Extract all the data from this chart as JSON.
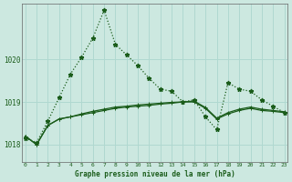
{
  "title": "Graphe pression niveau de la mer (hPa)",
  "background_color": "#cce8e0",
  "grid_color": "#b0d8d0",
  "line_color": "#1a5c1a",
  "xlim": [
    -0.3,
    23.3
  ],
  "ylim": [
    1017.6,
    1021.3
  ],
  "yticks": [
    1018,
    1019,
    1020
  ],
  "xticks": [
    0,
    1,
    2,
    3,
    4,
    5,
    6,
    7,
    8,
    9,
    10,
    11,
    12,
    13,
    14,
    15,
    16,
    17,
    18,
    19,
    20,
    21,
    22,
    23
  ],
  "series1_x": [
    0,
    1,
    2,
    3,
    4,
    5,
    6,
    7,
    8,
    9,
    10,
    11,
    12,
    13,
    14,
    15,
    16,
    17,
    18,
    19,
    20,
    21,
    22,
    23
  ],
  "series1_y": [
    1018.15,
    1018.05,
    1018.55,
    1019.1,
    1019.65,
    1020.05,
    1020.5,
    1021.15,
    1020.35,
    1020.1,
    1019.85,
    1019.55,
    1019.3,
    1019.25,
    1019.0,
    1019.05,
    1018.65,
    1018.35,
    1019.45,
    1019.3,
    1019.25,
    1019.05,
    1018.9,
    1018.75
  ],
  "series2_x": [
    0,
    1,
    2,
    3,
    4,
    5,
    6,
    7,
    8,
    9,
    10,
    11,
    12,
    13,
    14,
    15,
    16,
    17,
    18,
    19,
    20,
    21,
    22,
    23
  ],
  "series2_y": [
    1018.2,
    1018.0,
    1018.45,
    1018.6,
    1018.65,
    1018.7,
    1018.75,
    1018.8,
    1018.85,
    1018.88,
    1018.9,
    1018.92,
    1018.95,
    1018.97,
    1019.0,
    1019.0,
    1018.85,
    1018.6,
    1018.72,
    1018.8,
    1018.85,
    1018.8,
    1018.78,
    1018.75
  ],
  "series3_x": [
    0,
    1,
    2,
    3,
    4,
    5,
    6,
    7,
    8,
    9,
    10,
    11,
    12,
    13,
    14,
    15,
    16,
    17,
    18,
    19,
    20,
    21,
    22,
    23
  ],
  "series3_y": [
    1018.2,
    1018.0,
    1018.45,
    1018.6,
    1018.65,
    1018.72,
    1018.78,
    1018.83,
    1018.88,
    1018.9,
    1018.93,
    1018.95,
    1018.97,
    1018.99,
    1019.0,
    1019.02,
    1018.87,
    1018.62,
    1018.75,
    1018.83,
    1018.88,
    1018.83,
    1018.8,
    1018.77
  ]
}
